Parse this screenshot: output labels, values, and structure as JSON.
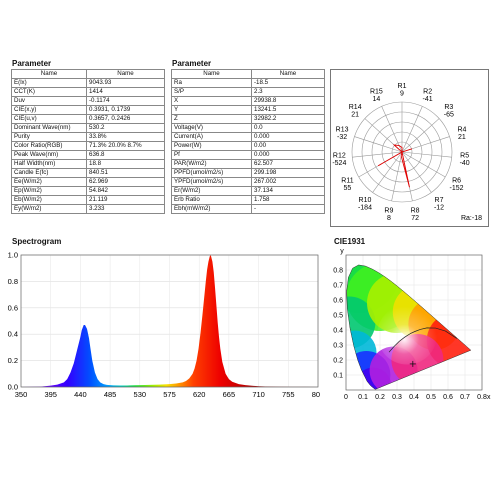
{
  "left_table": {
    "title": "Parameter",
    "headers": [
      "Name",
      "Name"
    ],
    "rows": [
      [
        "E(lx)",
        "9043.93"
      ],
      [
        "CCT(K)",
        "1414"
      ],
      [
        "Duv",
        "-0.1174"
      ],
      [
        "CIE(x,y)",
        "0.3931, 0.1739"
      ],
      [
        "CIE(u,v)",
        "0.3657, 0.2426"
      ],
      [
        "Dominant Wave(nm)",
        "530.2"
      ],
      [
        "Purity",
        "33.8%"
      ],
      [
        "Color Ratio(RGB)",
        "71.3% 20.0% 8.7%"
      ],
      [
        "Peak Wave(nm)",
        "636.8"
      ],
      [
        "Half Width(nm)",
        "18.8"
      ],
      [
        "Candle E(fc)",
        "840.51"
      ],
      [
        "Ee(W/m2)",
        "62.969"
      ],
      [
        "Ep(W/m2)",
        "54.842"
      ],
      [
        "Eb(W/m2)",
        "21.119"
      ],
      [
        "Ey(W/m2)",
        "3.233"
      ]
    ]
  },
  "right_table": {
    "title": "Parameter",
    "headers": [
      "Name",
      "Name"
    ],
    "rows": [
      [
        "Ra",
        "-18.5"
      ],
      [
        "S/P",
        "2.3"
      ],
      [
        "X",
        "29938.8"
      ],
      [
        "Y",
        "13241.5"
      ],
      [
        "Z",
        "32982.2"
      ],
      [
        "Voltage(V)",
        "0.0"
      ],
      [
        "Current(A)",
        "0.000"
      ],
      [
        "Power(W)",
        "0.00"
      ],
      [
        "Pf",
        "0.000"
      ],
      [
        "PAR(W/m2)",
        "62.507"
      ],
      [
        "PPFD(umol/m2/s)",
        "299.198"
      ],
      [
        "YPFD(umol/m2/s)",
        "267.002"
      ],
      [
        "Er(W/m2)",
        "37.134"
      ],
      [
        "Erb Ratio",
        "1.758"
      ],
      [
        "Ebh(mW/m2)",
        "-"
      ]
    ]
  },
  "polar": {
    "ra_label": "Ra:-18",
    "labels": [
      {
        "name": "R1",
        "value": "9"
      },
      {
        "name": "R2",
        "value": "-41"
      },
      {
        "name": "R3",
        "value": "-65"
      },
      {
        "name": "R4",
        "value": "21"
      },
      {
        "name": "R5",
        "value": "-40"
      },
      {
        "name": "R6",
        "value": "-152"
      },
      {
        "name": "R7",
        "value": "-12"
      },
      {
        "name": "R8",
        "value": "72"
      },
      {
        "name": "R9",
        "value": "8"
      },
      {
        "name": "R10",
        "value": "-184"
      },
      {
        "name": "R11",
        "value": "55"
      },
      {
        "name": "R12",
        "value": "-524"
      },
      {
        "name": "R13",
        "value": "-32"
      },
      {
        "name": "R14",
        "value": "21"
      },
      {
        "name": "R15",
        "value": "14"
      }
    ]
  },
  "chart_data": [
    {
      "type": "area",
      "title": "Spectrogram",
      "xlim": [
        350,
        800
      ],
      "ylim": [
        0,
        1.0
      ],
      "x_ticks": [
        "350",
        "395",
        "440",
        "485",
        "530",
        "575",
        "620",
        "665",
        "710",
        "755",
        "800"
      ],
      "y_ticks": [
        "0.0",
        "0.2",
        "0.4",
        "0.6",
        "0.8",
        "1.0"
      ],
      "x": [
        350,
        380,
        395,
        405,
        415,
        420,
        425,
        430,
        435,
        440,
        442,
        445,
        447,
        450,
        453,
        455,
        458,
        462,
        466,
        470,
        475,
        480,
        490,
        500,
        515,
        530,
        545,
        560,
        575,
        585,
        595,
        600,
        605,
        610,
        613,
        616,
        619,
        622,
        625,
        628,
        630,
        632,
        634,
        636,
        637,
        638,
        640,
        642,
        644,
        646,
        648,
        650,
        652,
        655,
        660,
        665,
        670,
        680,
        690,
        700,
        710,
        720,
        740,
        760,
        780,
        800
      ],
      "y": [
        0.0,
        0.003,
        0.01,
        0.018,
        0.035,
        0.06,
        0.11,
        0.18,
        0.28,
        0.38,
        0.43,
        0.47,
        0.47,
        0.44,
        0.37,
        0.3,
        0.2,
        0.11,
        0.06,
        0.035,
        0.022,
        0.016,
        0.012,
        0.011,
        0.012,
        0.014,
        0.016,
        0.018,
        0.022,
        0.027,
        0.035,
        0.045,
        0.065,
        0.1,
        0.14,
        0.2,
        0.29,
        0.41,
        0.55,
        0.7,
        0.8,
        0.89,
        0.95,
        0.99,
        1.0,
        0.99,
        0.95,
        0.87,
        0.75,
        0.62,
        0.49,
        0.38,
        0.29,
        0.19,
        0.1,
        0.06,
        0.04,
        0.022,
        0.014,
        0.009,
        0.006,
        0.004,
        0.002,
        0.001,
        0.0005,
        0.0
      ]
    },
    {
      "type": "scatter",
      "title": "CIE1931",
      "xlabel": "x",
      "ylabel": "y",
      "xlim": [
        0,
        0.8
      ],
      "ylim": [
        0,
        0.9
      ],
      "x_ticks": [
        "0",
        "0.1",
        "0.2",
        "0.3",
        "0.4",
        "0.5",
        "0.6",
        "0.7",
        "0.8"
      ],
      "y_ticks": [
        "0.1",
        "0.2",
        "0.3",
        "0.4",
        "0.5",
        "0.6",
        "0.7",
        "0.8"
      ],
      "point": {
        "x": 0.3931,
        "y": 0.1739
      }
    }
  ]
}
